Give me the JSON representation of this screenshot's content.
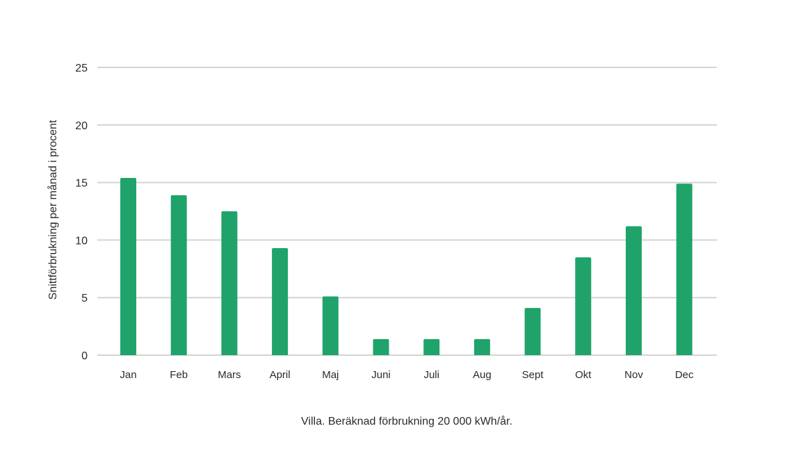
{
  "chart_data": {
    "type": "bar",
    "categories": [
      "Jan",
      "Feb",
      "Mars",
      "April",
      "Maj",
      "Juni",
      "Juli",
      "Aug",
      "Sept",
      "Okt",
      "Nov",
      "Dec"
    ],
    "values": [
      15.4,
      13.9,
      12.5,
      9.3,
      5.1,
      1.4,
      1.4,
      1.4,
      4.1,
      8.5,
      11.2,
      14.9
    ],
    "ylabel": "Snittförbrukning per månad i procent",
    "xlabel": "",
    "caption": "Villa. Beräknad förbrukning 20 000 kWh/år.",
    "ylim": [
      0,
      25
    ],
    "yticks": [
      "0",
      "5",
      "10",
      "15",
      "20",
      "25"
    ],
    "grid": true,
    "bar_color": "#20a36a",
    "grid_color": "#d4d4d4"
  }
}
